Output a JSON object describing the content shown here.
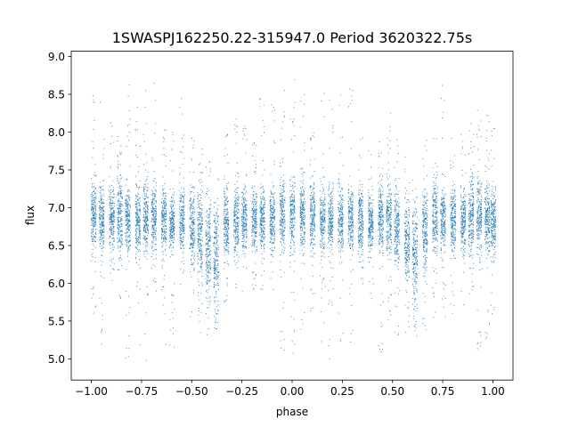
{
  "chart_data": {
    "type": "scatter",
    "title": "1SWASPJ162250.22-315947.0 Period 3620322.75s",
    "xlabel": "phase",
    "ylabel": "flux",
    "xlim": [
      -1.1,
      1.1
    ],
    "ylim": [
      4.72,
      9.07
    ],
    "xticks": [
      -1.0,
      -0.75,
      -0.5,
      -0.25,
      0.0,
      0.25,
      0.5,
      0.75,
      1.0
    ],
    "xtick_labels": [
      "−1.00",
      "−0.75",
      "−0.50",
      "−0.25",
      "0.00",
      "0.25",
      "0.50",
      "0.75",
      "1.00"
    ],
    "yticks": [
      5.0,
      5.5,
      6.0,
      6.5,
      7.0,
      7.5,
      8.0,
      8.5,
      9.0
    ],
    "ytick_labels": [
      "5.0",
      "5.5",
      "6.0",
      "6.5",
      "7.0",
      "7.5",
      "8.0",
      "8.5",
      "9.0"
    ],
    "grid": false,
    "legend": "none",
    "marker_color": "#1f77b4",
    "series": [
      {
        "clusters": [
          {
            "x": -0.99,
            "y_range": [
              5.6,
              8.7
            ],
            "core": [
              6.4,
              7.4
            ]
          },
          {
            "x": -0.95,
            "y_range": [
              5.2,
              8.6
            ],
            "core": [
              6.4,
              7.3
            ]
          },
          {
            "x": -0.9,
            "y_range": [
              5.9,
              8.2
            ],
            "core": [
              6.4,
              7.3
            ]
          },
          {
            "x": -0.86,
            "y_range": [
              5.8,
              8.0
            ],
            "core": [
              6.4,
              7.4
            ]
          },
          {
            "x": -0.82,
            "y_range": [
              5.0,
              8.7
            ],
            "core": [
              6.4,
              7.3
            ]
          },
          {
            "x": -0.77,
            "y_range": [
              5.1,
              8.4
            ],
            "core": [
              6.4,
              7.3
            ]
          },
          {
            "x": -0.73,
            "y_range": [
              4.95,
              8.8
            ],
            "core": [
              6.4,
              7.4
            ]
          },
          {
            "x": -0.69,
            "y_range": [
              5.9,
              8.7
            ],
            "core": [
              6.4,
              7.3
            ]
          },
          {
            "x": -0.64,
            "y_range": [
              5.1,
              8.1
            ],
            "core": [
              6.4,
              7.3
            ]
          },
          {
            "x": -0.6,
            "y_range": [
              5.1,
              8.2
            ],
            "core": [
              6.4,
              7.2
            ]
          },
          {
            "x": -0.55,
            "y_range": [
              5.9,
              8.5
            ],
            "core": [
              6.4,
              7.3
            ]
          },
          {
            "x": -0.5,
            "y_range": [
              5.5,
              8.0
            ],
            "core": [
              6.2,
              7.3
            ]
          },
          {
            "x": -0.46,
            "y_range": [
              5.3,
              7.9
            ],
            "core": [
              6.0,
              7.3
            ]
          },
          {
            "x": -0.42,
            "y_range": [
              5.3,
              7.7
            ],
            "core": [
              5.8,
              7.2
            ]
          },
          {
            "x": -0.38,
            "y_range": [
              5.3,
              7.4
            ],
            "core": [
              5.6,
              7.1
            ]
          },
          {
            "x": -0.33,
            "y_range": [
              5.7,
              8.0
            ],
            "core": [
              6.3,
              7.3
            ]
          },
          {
            "x": -0.28,
            "y_range": [
              5.9,
              8.2
            ],
            "core": [
              6.4,
              7.3
            ]
          },
          {
            "x": -0.24,
            "y_range": [
              5.9,
              8.1
            ],
            "core": [
              6.4,
              7.3
            ]
          },
          {
            "x": -0.19,
            "y_range": [
              5.9,
              8.0
            ],
            "core": [
              6.4,
              7.3
            ]
          },
          {
            "x": -0.15,
            "y_range": [
              5.9,
              8.5
            ],
            "core": [
              6.4,
              7.3
            ]
          },
          {
            "x": -0.1,
            "y_range": [
              5.8,
              8.4
            ],
            "core": [
              6.4,
              7.3
            ]
          },
          {
            "x": -0.05,
            "y_range": [
              5.1,
              8.6
            ],
            "core": [
              6.4,
              7.4
            ]
          },
          {
            "x": 0.0,
            "y_range": [
              4.95,
              8.7
            ],
            "core": [
              6.4,
              7.4
            ]
          },
          {
            "x": 0.05,
            "y_range": [
              5.2,
              8.5
            ],
            "core": [
              6.4,
              7.4
            ]
          },
          {
            "x": 0.1,
            "y_range": [
              5.6,
              8.0
            ],
            "core": [
              6.4,
              7.4
            ]
          },
          {
            "x": 0.15,
            "y_range": [
              5.2,
              8.7
            ],
            "core": [
              6.4,
              7.3
            ]
          },
          {
            "x": 0.19,
            "y_range": [
              5.0,
              8.5
            ],
            "core": [
              6.4,
              7.3
            ]
          },
          {
            "x": 0.24,
            "y_range": [
              5.2,
              8.6
            ],
            "core": [
              6.4,
              7.3
            ]
          },
          {
            "x": 0.29,
            "y_range": [
              5.2,
              8.6
            ],
            "core": [
              6.4,
              7.3
            ]
          },
          {
            "x": 0.34,
            "y_range": [
              5.9,
              8.0
            ],
            "core": [
              6.4,
              7.3
            ]
          },
          {
            "x": 0.39,
            "y_range": [
              5.8,
              7.8
            ],
            "core": [
              6.4,
              7.2
            ]
          },
          {
            "x": 0.44,
            "y_range": [
              5.1,
              7.9
            ],
            "core": [
              6.4,
              7.3
            ]
          },
          {
            "x": 0.48,
            "y_range": [
              5.5,
              8.4
            ],
            "core": [
              6.4,
              7.3
            ]
          },
          {
            "x": 0.52,
            "y_range": [
              5.3,
              8.0
            ],
            "core": [
              6.2,
              7.3
            ]
          },
          {
            "x": 0.57,
            "y_range": [
              5.3,
              7.7
            ],
            "core": [
              6.0,
              7.2
            ]
          },
          {
            "x": 0.61,
            "y_range": [
              5.3,
              7.6
            ],
            "core": [
              5.7,
              7.1
            ]
          },
          {
            "x": 0.66,
            "y_range": [
              5.3,
              7.9
            ],
            "core": [
              6.1,
              7.3
            ]
          },
          {
            "x": 0.71,
            "y_range": [
              5.4,
              8.0
            ],
            "core": [
              6.4,
              7.4
            ]
          },
          {
            "x": 0.75,
            "y_range": [
              5.5,
              8.7
            ],
            "core": [
              6.4,
              7.3
            ]
          },
          {
            "x": 0.8,
            "y_range": [
              5.6,
              8.0
            ],
            "core": [
              6.4,
              7.3
            ]
          },
          {
            "x": 0.85,
            "y_range": [
              5.7,
              8.0
            ],
            "core": [
              6.4,
              7.3
            ]
          },
          {
            "x": 0.89,
            "y_range": [
              5.7,
              8.2
            ],
            "core": [
              6.4,
              7.4
            ]
          },
          {
            "x": 0.93,
            "y_range": [
              5.1,
              8.5
            ],
            "core": [
              6.4,
              7.4
            ]
          },
          {
            "x": 0.97,
            "y_range": [
              5.2,
              8.5
            ],
            "core": [
              6.4,
              7.4
            ]
          },
          {
            "x": 1.0,
            "y_range": [
              5.6,
              8.1
            ],
            "core": [
              6.4,
              7.3
            ]
          }
        ]
      }
    ]
  }
}
